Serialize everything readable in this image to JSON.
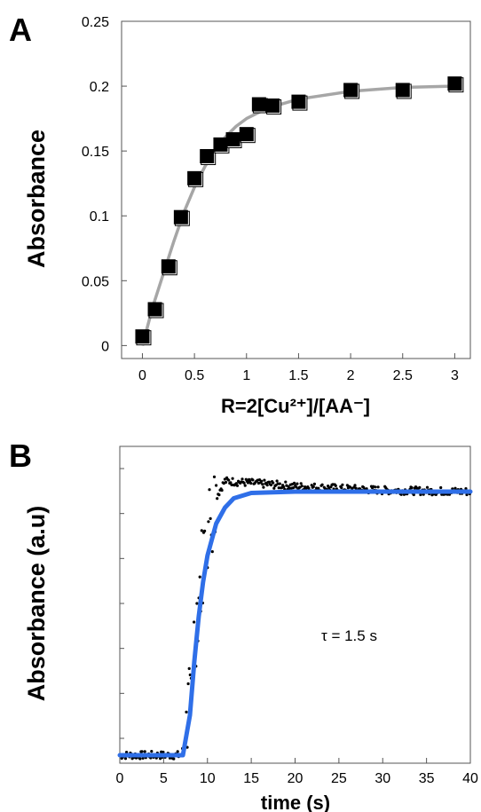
{
  "chart_data": [
    {
      "panel": "A",
      "type": "scatter",
      "xlabel": "R=2[Cu²⁺]/[AA⁻]",
      "ylabel": "Absorbance",
      "xlim": [
        -0.2,
        3.15
      ],
      "ylim": [
        -0.01,
        0.25
      ],
      "x_ticks": [
        "0",
        "0.5",
        "1",
        "1.5",
        "2",
        "2.5",
        "3"
      ],
      "y_ticks": [
        "0",
        "0.05",
        "0.1",
        "0.15",
        "0.2",
        "0.25"
      ],
      "grid": false,
      "series": [
        {
          "marker": "square",
          "color": "#000000",
          "points": [
            {
              "x": 0.0,
              "y": 0.007
            },
            {
              "x": 0.12,
              "y": 0.028
            },
            {
              "x": 0.25,
              "y": 0.061
            },
            {
              "x": 0.37,
              "y": 0.099
            },
            {
              "x": 0.5,
              "y": 0.129
            },
            {
              "x": 0.62,
              "y": 0.146
            },
            {
              "x": 0.75,
              "y": 0.155
            },
            {
              "x": 0.87,
              "y": 0.159
            },
            {
              "x": 1.0,
              "y": 0.163
            },
            {
              "x": 1.12,
              "y": 0.186
            },
            {
              "x": 1.25,
              "y": 0.185
            },
            {
              "x": 1.5,
              "y": 0.188
            },
            {
              "x": 2.0,
              "y": 0.197
            },
            {
              "x": 2.5,
              "y": 0.197
            },
            {
              "x": 3.0,
              "y": 0.202
            }
          ]
        },
        {
          "type": "line",
          "color": "#a6a6a6",
          "points": [
            {
              "x": 0.0,
              "y": 0.0
            },
            {
              "x": 0.1,
              "y": 0.03
            },
            {
              "x": 0.2,
              "y": 0.055
            },
            {
              "x": 0.3,
              "y": 0.08
            },
            {
              "x": 0.4,
              "y": 0.103
            },
            {
              "x": 0.5,
              "y": 0.122
            },
            {
              "x": 0.6,
              "y": 0.138
            },
            {
              "x": 0.7,
              "y": 0.151
            },
            {
              "x": 0.8,
              "y": 0.161
            },
            {
              "x": 0.9,
              "y": 0.169
            },
            {
              "x": 1.0,
              "y": 0.175
            },
            {
              "x": 1.2,
              "y": 0.183
            },
            {
              "x": 1.5,
              "y": 0.19
            },
            {
              "x": 2.0,
              "y": 0.196
            },
            {
              "x": 2.5,
              "y": 0.199
            },
            {
              "x": 3.0,
              "y": 0.2
            }
          ]
        }
      ]
    },
    {
      "panel": "B",
      "type": "scatter",
      "xlabel": "time (s)",
      "ylabel": "Absorbance (a.u)",
      "annotation": "τ = 1.5 s",
      "xlim": [
        0,
        40
      ],
      "ylim": [
        0,
        1.05
      ],
      "x_ticks": [
        "0",
        "5",
        "10",
        "15",
        "20",
        "25",
        "30",
        "35",
        "40"
      ],
      "y_tick_count": 7,
      "grid": false,
      "series": [
        {
          "marker": "dot",
          "color": "#000000",
          "description_points": [
            {
              "x": 0.0,
              "y": 0.0
            },
            {
              "x": 7.0,
              "y": 0.0
            },
            {
              "x": 7.5,
              "y": 0.05
            },
            {
              "x": 8.0,
              "y": 0.2
            },
            {
              "x": 8.5,
              "y": 0.45
            },
            {
              "x": 9.0,
              "y": 0.6
            },
            {
              "x": 9.5,
              "y": 0.75
            },
            {
              "x": 10.0,
              "y": 0.85
            },
            {
              "x": 11.0,
              "y": 0.97
            },
            {
              "x": 12.0,
              "y": 1.03
            },
            {
              "x": 20.0,
              "y": 1.01
            },
            {
              "x": 30.0,
              "y": 0.995
            },
            {
              "x": 40.0,
              "y": 0.99
            }
          ]
        },
        {
          "type": "line",
          "color": "#2f6fe8",
          "name_shown": false,
          "points": [
            {
              "x": 0.0,
              "y": 0.0
            },
            {
              "x": 7.2,
              "y": 0.0
            },
            {
              "x": 8.0,
              "y": 0.15
            },
            {
              "x": 8.5,
              "y": 0.35
            },
            {
              "x": 9.0,
              "y": 0.52
            },
            {
              "x": 9.5,
              "y": 0.65
            },
            {
              "x": 10.0,
              "y": 0.75
            },
            {
              "x": 11.0,
              "y": 0.87
            },
            {
              "x": 12.0,
              "y": 0.93
            },
            {
              "x": 13.0,
              "y": 0.965
            },
            {
              "x": 15.0,
              "y": 0.985
            },
            {
              "x": 20.0,
              "y": 0.99
            },
            {
              "x": 40.0,
              "y": 0.99
            }
          ]
        }
      ]
    }
  ],
  "labels": {
    "panelA": "A",
    "panelB": "B"
  }
}
